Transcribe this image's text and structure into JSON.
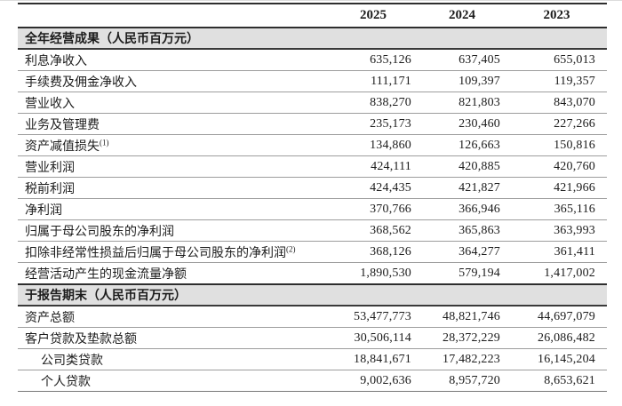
{
  "table": {
    "year_headers": [
      "2025",
      "2024",
      "2023"
    ],
    "sections": [
      {
        "title_strong": "全年经营成果",
        "title_unit": "（人民币百万元）",
        "rows": [
          {
            "label": "利息净收入",
            "values": [
              "635,126",
              "637,405",
              "655,013"
            ]
          },
          {
            "label": "手续费及佣金净收入",
            "values": [
              "111,171",
              "109,397",
              "119,357"
            ]
          },
          {
            "label": "营业收入",
            "values": [
              "838,270",
              "821,803",
              "843,070"
            ]
          },
          {
            "label": "业务及管理费",
            "values": [
              "235,173",
              "230,460",
              "227,266"
            ]
          },
          {
            "label": "资产减值损失",
            "sup": "(1)",
            "values": [
              "134,860",
              "126,663",
              "150,816"
            ]
          },
          {
            "label": "营业利润",
            "values": [
              "424,111",
              "420,885",
              "420,760"
            ]
          },
          {
            "label": "税前利润",
            "values": [
              "424,435",
              "421,827",
              "421,966"
            ]
          },
          {
            "label": "净利润",
            "values": [
              "370,766",
              "366,946",
              "365,116"
            ]
          },
          {
            "label": "归属于母公司股东的净利润",
            "values": [
              "368,562",
              "365,863",
              "363,993"
            ]
          },
          {
            "label": "扣除非经常性损益后归属于母公司股东的净利润",
            "sup": "(2)",
            "values": [
              "368,126",
              "364,277",
              "361,411"
            ]
          },
          {
            "label": "经营活动产生的现金流量净额",
            "values": [
              "1,890,530",
              "579,194",
              "1,417,002"
            ]
          }
        ]
      },
      {
        "title_strong": "于报告期末",
        "title_unit": "（人民币百万元）",
        "rows": [
          {
            "label": "资产总额",
            "values": [
              "53,477,773",
              "48,821,746",
              "44,697,079"
            ]
          },
          {
            "label": "客户贷款及垫款总额",
            "values": [
              "30,506,114",
              "28,372,229",
              "26,086,482"
            ]
          },
          {
            "label": "公司类贷款",
            "values": [
              "18,841,671",
              "17,482,223",
              "16,145,204"
            ]
          },
          {
            "label": "个人贷款",
            "values": [
              "9,002,636",
              "8,957,720",
              "8,653,621"
            ]
          }
        ]
      }
    ]
  },
  "colors": {
    "section_band": "#e0e0e0",
    "heavy_rule": "#2e2e2e",
    "light_rule": "#9d9d9d",
    "text": "#1c1c1c"
  }
}
